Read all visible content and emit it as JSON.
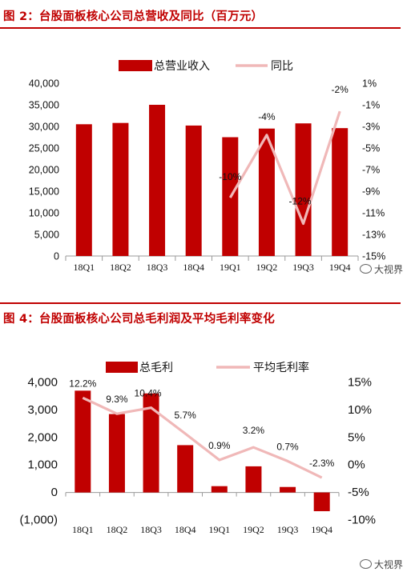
{
  "charts": [
    {
      "title": "图 2：台股面板核心公司总营收及同比（百万元）",
      "chart_data": {
        "type": "bar",
        "categories": [
          "18Q1",
          "18Q2",
          "18Q3",
          "18Q4",
          "19Q1",
          "19Q2",
          "19Q3",
          "19Q4"
        ],
        "series": [
          {
            "name": "总营业收入",
            "kind": "bar",
            "axis": "left",
            "values": [
              30500,
              30800,
              35000,
              30200,
              27500,
              29500,
              30700,
              29600
            ],
            "color": "#c00000"
          },
          {
            "name": "同比",
            "kind": "line",
            "axis": "right",
            "values": [
              null,
              null,
              null,
              null,
              -9.6,
              -3.8,
              -12.0,
              -1.6
            ],
            "color": "#f0b8b8"
          }
        ],
        "line_labels": [
          "",
          "",
          "",
          "",
          "-10%",
          "-4%",
          "-12%",
          "-2%"
        ],
        "left_axis": {
          "ylim": [
            0,
            40000
          ],
          "ticks": [
            "0",
            "5,000",
            "10,000",
            "15,000",
            "20,000",
            "25,000",
            "30,000",
            "35,000",
            "40,000"
          ]
        },
        "right_axis": {
          "ylim": [
            -15,
            1
          ],
          "ticks": [
            "-15%",
            "-13%",
            "-11%",
            "-9%",
            "-7%",
            "-5%",
            "-3%",
            "-1%",
            "1%"
          ]
        },
        "legend_position": "top"
      }
    },
    {
      "title": "图 4：台股面板核心公司总毛利润及平均毛利率变化",
      "chart_data": {
        "type": "bar",
        "categories": [
          "18Q1",
          "18Q2",
          "18Q3",
          "18Q4",
          "19Q1",
          "19Q2",
          "19Q3",
          "19Q4"
        ],
        "series": [
          {
            "name": "总毛利",
            "kind": "bar",
            "axis": "left",
            "values": [
              3700,
              2850,
              3600,
              1720,
              230,
              950,
              200,
              -680
            ],
            "color": "#c00000"
          },
          {
            "name": "平均毛利率",
            "kind": "line",
            "axis": "right",
            "values": [
              12.2,
              9.3,
              10.4,
              5.7,
              0.9,
              3.2,
              0.7,
              -2.3
            ],
            "color": "#f0b8b8"
          }
        ],
        "line_labels": [
          "12.2%",
          "9.3%",
          "10.4%",
          "5.7%",
          "0.9%",
          "3.2%",
          "0.7%",
          "-2.3%"
        ],
        "left_axis": {
          "ylim": [
            -1000,
            4000
          ],
          "ticks": [
            "(1,000)",
            "0",
            "1,000",
            "2,000",
            "3,000",
            "4,000"
          ]
        },
        "right_axis": {
          "ylim": [
            -10,
            15
          ],
          "ticks": [
            "-10%",
            "-5%",
            "0%",
            "5%",
            "10%",
            "15%"
          ]
        },
        "legend_position": "top"
      }
    }
  ],
  "watermark": "大视界"
}
